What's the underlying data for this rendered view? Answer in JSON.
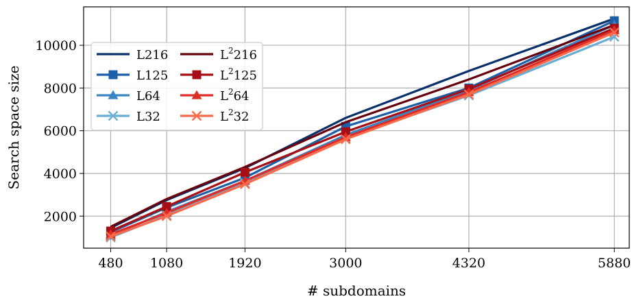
{
  "chart_data": {
    "type": "line",
    "xlabel": "# subdomains",
    "ylabel": "Search space size",
    "x": [
      480,
      1080,
      1920,
      3000,
      4320,
      5880
    ],
    "x_ticks": [
      "480",
      "1080",
      "1920",
      "3000",
      "4320",
      "5880"
    ],
    "y_ticks": [
      2000,
      4000,
      6000,
      8000,
      10000
    ],
    "y_tick_labels": [
      "2000",
      "4000",
      "6000",
      "8000",
      "10000"
    ],
    "xlim": [
      190,
      6040
    ],
    "ylim": [
      500,
      11800
    ],
    "grid": true,
    "legend": {
      "placement": "upper-left",
      "columns": 2
    },
    "series": [
      {
        "name": "L216",
        "label_base": "L",
        "label_sup": "",
        "label_tail": "216",
        "color": "#08306b",
        "marker": "none",
        "values": [
          1450,
          2750,
          4250,
          6600,
          8800,
          11250
        ]
      },
      {
        "name": "L125",
        "label_base": "L",
        "label_sup": "",
        "label_tail": "125",
        "color": "#1c5ea8",
        "marker": "square",
        "values": [
          1250,
          2400,
          3800,
          6200,
          8000,
          11150
        ]
      },
      {
        "name": "L64",
        "label_base": "L",
        "label_sup": "",
        "label_tail": "64",
        "color": "#3a86c4",
        "marker": "triangle",
        "values": [
          1080,
          2200,
          3650,
          5800,
          7900,
          10950
        ]
      },
      {
        "name": "L32",
        "label_base": "L",
        "label_sup": "",
        "label_tail": "32",
        "color": "#6aaed6",
        "marker": "x",
        "values": [
          1000,
          2050,
          3550,
          5650,
          7650,
          10400
        ]
      },
      {
        "name": "L²216",
        "label_base": "L",
        "label_sup": "2",
        "label_tail": "216",
        "color": "#67000d",
        "marker": "none",
        "values": [
          1500,
          2800,
          4300,
          6400,
          8400,
          10950
        ]
      },
      {
        "name": "L²125",
        "label_base": "L",
        "label_sup": "2",
        "label_tail": "125",
        "color": "#a50f15",
        "marker": "square",
        "values": [
          1300,
          2450,
          4050,
          5950,
          7950,
          10800
        ]
      },
      {
        "name": "L²64",
        "label_base": "L",
        "label_sup": "2",
        "label_tail": "64",
        "color": "#de2d26",
        "marker": "triangle",
        "values": [
          1150,
          2150,
          3650,
          5700,
          7800,
          10700
        ]
      },
      {
        "name": "L²32",
        "label_base": "L",
        "label_sup": "2",
        "label_tail": "32",
        "color": "#fb6a4a",
        "marker": "x",
        "values": [
          1050,
          2000,
          3500,
          5600,
          7700,
          10600
        ]
      }
    ]
  }
}
